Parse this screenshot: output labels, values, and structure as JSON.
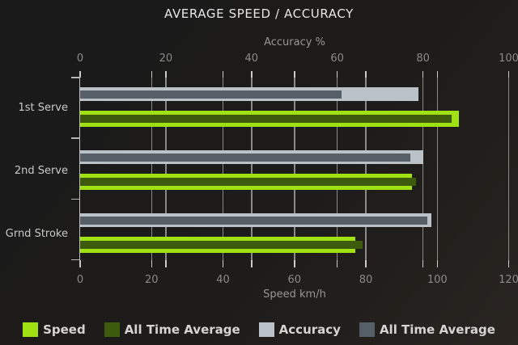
{
  "chart_data": {
    "type": "bar",
    "orientation": "horizontal",
    "title": "AVERAGE SPEED / ACCURACY",
    "categories": [
      "1st Serve",
      "2nd Serve",
      "Grnd Stroke"
    ],
    "axes": {
      "top": {
        "label": "Accuracy %",
        "range": [
          0,
          100
        ],
        "ticks": [
          0,
          20,
          40,
          60,
          80,
          100
        ]
      },
      "bottom": {
        "label": "Speed km/h",
        "range": [
          0,
          120
        ],
        "ticks": [
          0,
          20,
          40,
          60,
          80,
          100,
          120
        ]
      }
    },
    "series": [
      {
        "name": "Speed",
        "axis": "bottom",
        "role": "outer",
        "color": "#a0e114",
        "values": [
          106,
          93,
          77
        ]
      },
      {
        "name": "All Time Average",
        "axis": "bottom",
        "role": "inner",
        "color": "#3e5a0c",
        "values": [
          104,
          94,
          79
        ]
      },
      {
        "name": "Accuracy",
        "axis": "top",
        "role": "outer",
        "color": "#bbc2c7",
        "values": [
          79,
          80,
          82
        ]
      },
      {
        "name": "All Time Average",
        "axis": "top",
        "role": "inner",
        "color": "#565f68",
        "values": [
          61,
          77,
          81
        ]
      }
    ],
    "grid": true,
    "legend_position": "bottom"
  }
}
